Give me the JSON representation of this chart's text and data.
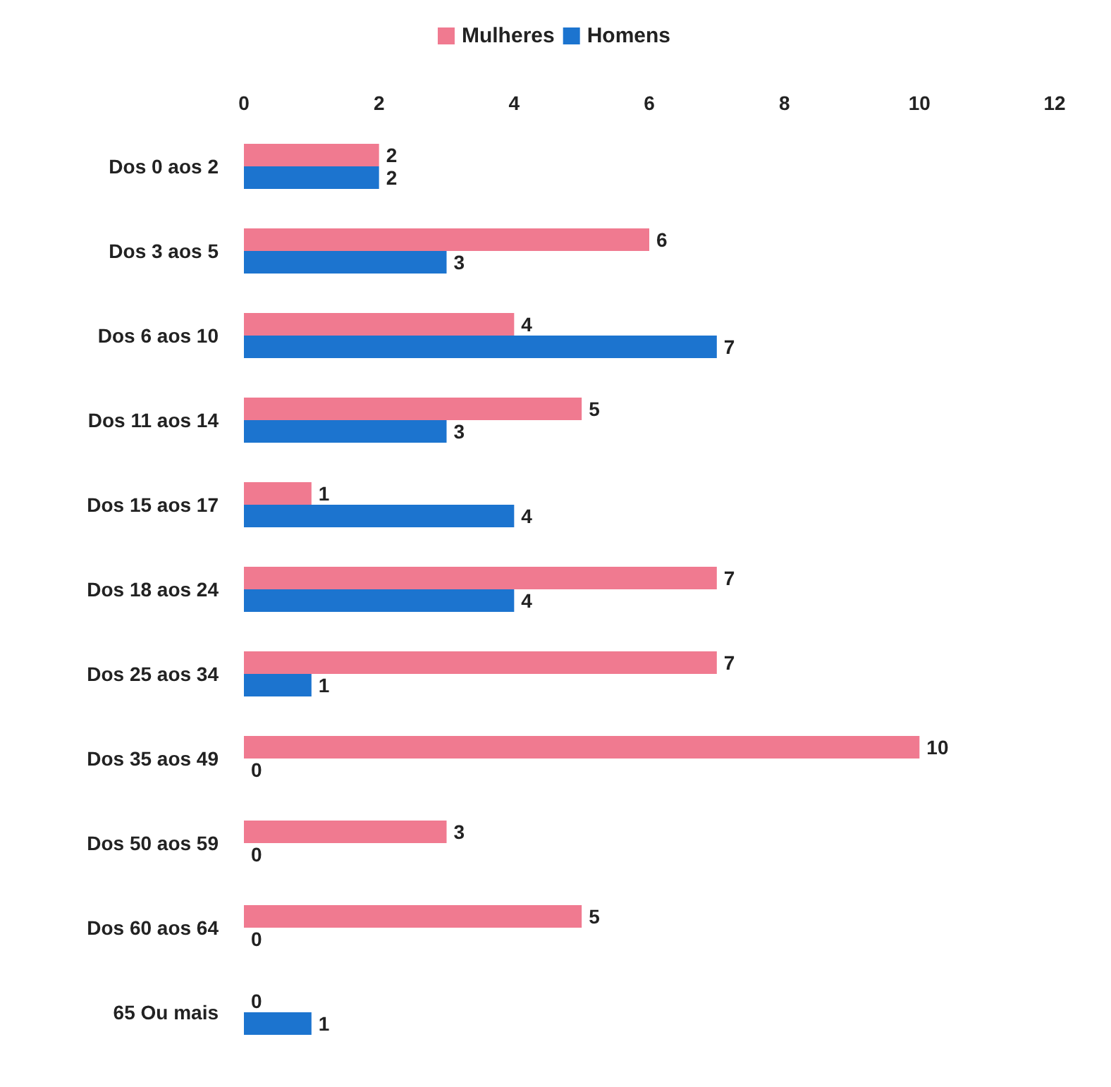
{
  "chart_data": {
    "type": "bar",
    "orientation": "horizontal",
    "categories": [
      "Dos 0 aos 2",
      "Dos 3 aos 5",
      "Dos 6 aos 10",
      "Dos 11 aos 14",
      "Dos 15 aos 17",
      "Dos 18 aos 24",
      "Dos 25 aos 34",
      "Dos 35 aos 49",
      "Dos 50 aos 59",
      "Dos 60 aos 64",
      "65 Ou mais"
    ],
    "series": [
      {
        "name": "Mulheres",
        "color": "#f07a90",
        "values": [
          2,
          6,
          4,
          5,
          1,
          7,
          7,
          10,
          3,
          5,
          0
        ]
      },
      {
        "name": "Homens",
        "color": "#1c74cf",
        "values": [
          2,
          3,
          7,
          3,
          4,
          4,
          1,
          0,
          0,
          0,
          1
        ]
      }
    ],
    "xlim": [
      0,
      12
    ],
    "xticks": [
      0,
      2,
      4,
      6,
      8,
      10,
      12
    ],
    "grid": false,
    "legend": "top",
    "data_labels": true
  }
}
